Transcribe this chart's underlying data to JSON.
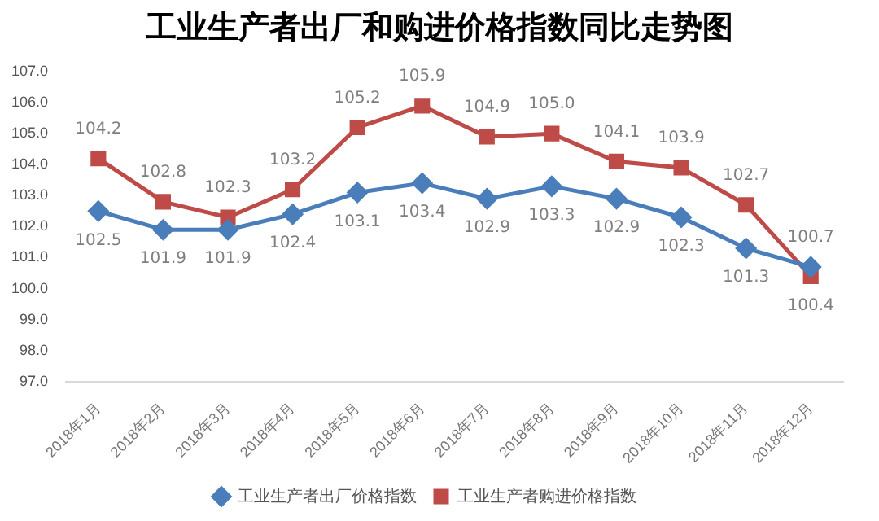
{
  "chart_data": {
    "type": "line",
    "title": "工业生产者出厂和购进价格指数同比走势图",
    "categories": [
      "2018年1月",
      "2018年2月",
      "2018年3月",
      "2018年4月",
      "2018年5月",
      "2018年6月",
      "2018年7月",
      "2018年8月",
      "2018年9月",
      "2018年10月",
      "2018年11月",
      "2018年12月"
    ],
    "series": [
      {
        "name": "工业生产者出厂价格指数",
        "color": "#4a7ebb",
        "marker": "diamond",
        "values": [
          102.5,
          101.9,
          101.9,
          102.4,
          103.1,
          103.4,
          102.9,
          103.3,
          102.9,
          102.3,
          101.3,
          100.7
        ],
        "value_labels": [
          "102.5",
          "101.9",
          "101.9",
          "102.4",
          "103.1",
          "103.4",
          "102.9",
          "103.3",
          "102.9",
          "102.3",
          "101.3",
          "100.7"
        ]
      },
      {
        "name": "工业生产者购进价格指数",
        "color": "#be4b48",
        "marker": "square",
        "values": [
          104.2,
          102.8,
          102.3,
          103.2,
          105.2,
          105.9,
          104.9,
          105.0,
          104.1,
          103.9,
          102.7,
          100.4
        ],
        "value_labels": [
          "104.2",
          "102.8",
          "102.3",
          "103.2",
          "105.2",
          "105.9",
          "104.9",
          "105.0",
          "104.1",
          "103.9",
          "102.7",
          "100.4"
        ]
      }
    ],
    "ylim": [
      97,
      107
    ],
    "yticks": [
      {
        "value": 97,
        "label": "97.0"
      },
      {
        "value": 98,
        "label": "98.0"
      },
      {
        "value": 99,
        "label": "99.0"
      },
      {
        "value": 100,
        "label": "100.0"
      },
      {
        "value": 101,
        "label": "101.0"
      },
      {
        "value": 102,
        "label": "102.0"
      },
      {
        "value": 103,
        "label": "103.0"
      },
      {
        "value": 104,
        "label": "104.0"
      },
      {
        "value": 105,
        "label": "105.0"
      },
      {
        "value": 106,
        "label": "106.0"
      },
      {
        "value": 107,
        "label": "107.0"
      }
    ],
    "grid": false,
    "legend": "bottom",
    "line_style": "solid"
  }
}
